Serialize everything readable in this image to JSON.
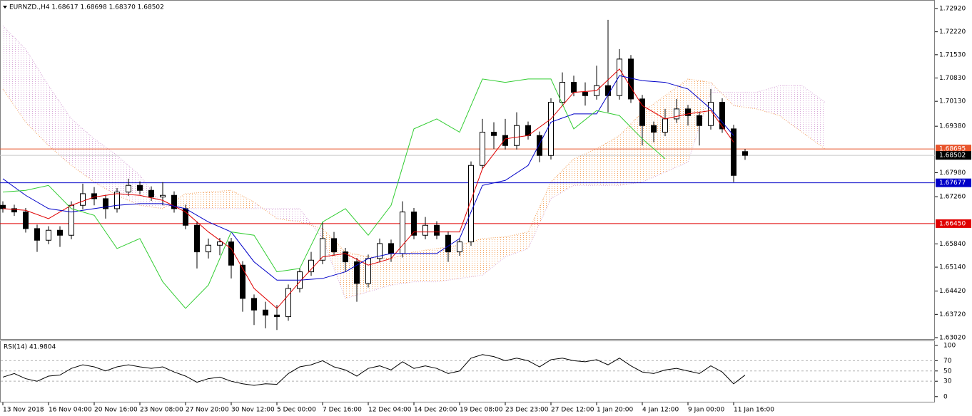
{
  "chart_data": [
    {
      "type": "candlestick",
      "title": "EURNZD.,H4  1.68617 1.68698 1.68370 1.68502",
      "x_labels": [
        "13 Nov 2018",
        "16 Nov 04:00",
        "20 Nov 16:00",
        "23 Nov 08:00",
        "27 Nov 20:00",
        "30 Nov 12:00",
        "5 Dec 00:00",
        "7 Dec 16:00",
        "12 Dec 04:00",
        "14 Dec 20:00",
        "19 Dec 08:00",
        "23 Dec 23:00",
        "27 Dec 12:00",
        "1 Jan 20:00",
        "4 Jan 12:00",
        "9 Jan 00:00",
        "11 Jan 16:00"
      ],
      "open": [
        1.67,
        1.669,
        1.668,
        1.663,
        1.6595,
        1.6625,
        1.661,
        1.67,
        1.6735,
        1.672,
        1.669,
        1.674,
        1.676,
        1.6745,
        1.6725,
        1.673,
        1.669,
        1.664,
        1.656,
        1.658,
        1.659,
        1.652,
        1.642,
        1.6385,
        1.637,
        1.6365,
        1.645,
        1.65,
        1.6535,
        1.66,
        1.656,
        1.653,
        1.6465,
        1.654,
        1.6585,
        1.6555,
        1.668,
        1.661,
        1.664,
        1.661,
        1.656,
        1.659,
        1.682,
        1.692,
        1.691,
        1.688,
        1.694,
        1.691,
        1.685,
        1.701,
        1.707,
        1.704,
        1.703,
        1.706,
        1.703,
        1.714,
        1.702,
        1.694,
        1.692,
        1.696,
        1.699,
        1.697,
        1.694,
        1.701,
        1.693,
        1.68617
      ],
      "high": [
        1.6712,
        1.6702,
        1.6692,
        1.6642,
        1.6637,
        1.6637,
        1.6712,
        1.6765,
        1.6755,
        1.6732,
        1.6752,
        1.678,
        1.6772,
        1.6757,
        1.677,
        1.6742,
        1.6702,
        1.6652,
        1.66,
        1.6602,
        1.6602,
        1.6532,
        1.6432,
        1.641,
        1.64,
        1.6462,
        1.6512,
        1.656,
        1.665,
        1.662,
        1.6572,
        1.6542,
        1.6552,
        1.66,
        1.6597,
        1.6712,
        1.6692,
        1.6665,
        1.6652,
        1.6622,
        1.6602,
        1.6832,
        1.696,
        1.695,
        1.696,
        1.698,
        1.6952,
        1.6922,
        1.7022,
        1.71,
        1.709,
        1.707,
        1.712,
        1.7258,
        1.717,
        1.7152,
        1.7032,
        1.6952,
        1.699,
        1.702,
        1.7002,
        1.6982,
        1.705,
        1.7022,
        1.6942,
        1.68698
      ],
      "low": [
        1.6678,
        1.6668,
        1.6618,
        1.656,
        1.6583,
        1.6575,
        1.6598,
        1.6688,
        1.67,
        1.666,
        1.6678,
        1.6728,
        1.6733,
        1.6713,
        1.67,
        1.6678,
        1.6628,
        1.651,
        1.654,
        1.655,
        1.648,
        1.638,
        1.634,
        1.633,
        1.6325,
        1.6353,
        1.6438,
        1.6488,
        1.6523,
        1.6548,
        1.65,
        1.641,
        1.6453,
        1.6528,
        1.653,
        1.6543,
        1.6598,
        1.6598,
        1.6598,
        1.653,
        1.6548,
        1.6578,
        1.6808,
        1.687,
        1.6868,
        1.6868,
        1.6898,
        1.683,
        1.6838,
        1.6998,
        1.7028,
        1.7,
        1.7018,
        1.698,
        1.7018,
        1.7008,
        1.688,
        1.689,
        1.6908,
        1.6948,
        1.694,
        1.688,
        1.6928,
        1.6918,
        1.677,
        1.6837
      ],
      "close": [
        1.669,
        1.668,
        1.663,
        1.6595,
        1.6625,
        1.661,
        1.67,
        1.6735,
        1.672,
        1.669,
        1.674,
        1.676,
        1.6745,
        1.6725,
        1.673,
        1.669,
        1.664,
        1.656,
        1.658,
        1.659,
        1.652,
        1.642,
        1.6385,
        1.637,
        1.6365,
        1.645,
        1.65,
        1.6535,
        1.66,
        1.656,
        1.653,
        1.6465,
        1.654,
        1.6585,
        1.6555,
        1.668,
        1.661,
        1.664,
        1.661,
        1.656,
        1.659,
        1.682,
        1.692,
        1.691,
        1.688,
        1.694,
        1.691,
        1.685,
        1.701,
        1.707,
        1.704,
        1.703,
        1.706,
        1.703,
        1.714,
        1.702,
        1.694,
        1.692,
        1.696,
        1.699,
        1.697,
        1.694,
        1.701,
        1.693,
        1.679,
        1.68502
      ],
      "ylim": [
        1.62977,
        1.73155
      ],
      "yticks": [
        {
          "value": 1.7292,
          "label": "1.72920"
        },
        {
          "value": 1.7222,
          "label": "1.72220"
        },
        {
          "value": 1.7153,
          "label": "1.71530"
        },
        {
          "value": 1.7083,
          "label": "1.70830"
        },
        {
          "value": 1.7013,
          "label": "1.70130"
        },
        {
          "value": 1.6938,
          "label": "1.69380"
        },
        {
          "value": 1.6798,
          "label": "1.67980"
        },
        {
          "value": 1.6726,
          "label": "1.67260"
        },
        {
          "value": 1.6584,
          "label": "1.65840"
        },
        {
          "value": 1.6514,
          "label": "1.65140"
        },
        {
          "value": 1.6442,
          "label": "1.64420"
        },
        {
          "value": 1.6372,
          "label": "1.63720"
        },
        {
          "value": 1.6302,
          "label": "1.63020"
        }
      ],
      "levels": [
        {
          "value": 1.68695,
          "color": "#e8542b"
        },
        {
          "value": 1.68502,
          "color": "#000000",
          "line_color": "#c8c8c8"
        },
        {
          "value": 1.67677,
          "color": "#0000c8"
        },
        {
          "value": 1.6645,
          "label": "1.66450",
          "color": "#e00000"
        }
      ],
      "lines": [
        {
          "color": "#e00000",
          "x": [
            0,
            2,
            4,
            6,
            8,
            10,
            12,
            14,
            16,
            18,
            20,
            22,
            24,
            26,
            28,
            30,
            32,
            34,
            36,
            38,
            40,
            42,
            44,
            46,
            48,
            50,
            52,
            54,
            56,
            58,
            60,
            62,
            64
          ],
          "values": [
            1.669,
            1.6685,
            1.666,
            1.67,
            1.6725,
            1.6735,
            1.673,
            1.6715,
            1.668,
            1.662,
            1.657,
            1.645,
            1.639,
            1.647,
            1.6545,
            1.6555,
            1.652,
            1.654,
            1.662,
            1.662,
            1.662,
            1.681,
            1.69,
            1.691,
            1.696,
            1.704,
            1.7045,
            1.711,
            1.7,
            1.696,
            1.6975,
            1.6985,
            1.689
          ]
        },
        {
          "color": "#0000c8",
          "x": [
            0,
            2,
            4,
            6,
            8,
            10,
            12,
            14,
            16,
            18,
            20,
            22,
            24,
            26,
            28,
            30,
            32,
            34,
            36,
            38,
            40,
            42,
            44,
            46,
            48,
            50,
            52,
            54,
            56,
            58,
            60,
            62,
            64
          ],
          "values": [
            1.678,
            1.673,
            1.669,
            1.668,
            1.669,
            1.67,
            1.6705,
            1.6705,
            1.669,
            1.665,
            1.662,
            1.653,
            1.6475,
            1.6475,
            1.648,
            1.65,
            1.654,
            1.6555,
            1.6555,
            1.6555,
            1.66,
            1.676,
            1.6775,
            1.682,
            1.695,
            1.6975,
            1.6975,
            1.709,
            1.7075,
            1.707,
            1.705,
            1.699,
            1.691
          ]
        },
        {
          "color": "#32cd32",
          "x": [
            0,
            2,
            4,
            6,
            8,
            10,
            12,
            14,
            16,
            18,
            20,
            22,
            24,
            26,
            28,
            30,
            32,
            34,
            36,
            38,
            40,
            42,
            44,
            46,
            48,
            50,
            52,
            54,
            56,
            58
          ],
          "values": [
            1.674,
            1.6745,
            1.676,
            1.669,
            1.667,
            1.657,
            1.66,
            1.647,
            1.639,
            1.646,
            1.662,
            1.661,
            1.65,
            1.651,
            1.665,
            1.669,
            1.661,
            1.67,
            1.693,
            1.696,
            1.692,
            1.708,
            1.707,
            1.708,
            1.708,
            1.693,
            1.6985,
            1.697,
            1.69,
            1.684
          ]
        }
      ],
      "cloud": {
        "colors": [
          "#f4a460",
          "#d8a8d8"
        ],
        "x": [
          0,
          2,
          4,
          6,
          8,
          10,
          12,
          14,
          16,
          18,
          20,
          22,
          24,
          26,
          28,
          30,
          32,
          34,
          36,
          38,
          40,
          42,
          44,
          46,
          48,
          50,
          52,
          54,
          56,
          58,
          60,
          62,
          64,
          66,
          68,
          70,
          72
        ],
        "span_a": [
          1.705,
          1.695,
          1.688,
          1.682,
          1.677,
          1.673,
          1.67,
          1.669,
          1.6735,
          1.674,
          1.6745,
          1.671,
          1.666,
          1.665,
          1.663,
          1.656,
          1.6545,
          1.654,
          1.656,
          1.657,
          1.658,
          1.66,
          1.6605,
          1.662,
          1.677,
          1.684,
          1.687,
          1.691,
          1.698,
          1.703,
          1.708,
          1.707,
          1.7,
          1.699,
          1.697,
          1.692,
          1.687
        ],
        "span_b": [
          1.724,
          1.717,
          1.706,
          1.696,
          1.69,
          1.685,
          1.679,
          1.67,
          1.669,
          1.669,
          1.669,
          1.669,
          1.669,
          1.669,
          1.66,
          1.642,
          1.644,
          1.646,
          1.647,
          1.647,
          1.648,
          1.649,
          1.6545,
          1.657,
          1.672,
          1.676,
          1.676,
          1.676,
          1.677,
          1.68,
          1.683,
          1.704,
          1.704,
          1.704,
          1.706,
          1.706,
          1.701
        ]
      }
    },
    {
      "type": "line",
      "title": "RSI(14) 41.9804",
      "color": "#000000",
      "values": [
        38,
        45,
        35,
        30,
        40,
        42,
        55,
        62,
        58,
        50,
        58,
        62,
        58,
        55,
        58,
        48,
        40,
        28,
        35,
        38,
        30,
        25,
        22,
        25,
        24,
        45,
        58,
        62,
        70,
        58,
        52,
        40,
        55,
        60,
        52,
        68,
        55,
        60,
        55,
        45,
        50,
        75,
        82,
        78,
        70,
        75,
        70,
        58,
        72,
        75,
        70,
        68,
        72,
        62,
        75,
        60,
        48,
        45,
        52,
        55,
        50,
        45,
        60,
        48,
        25,
        41.9804
      ],
      "ylim": [
        -10,
        108
      ],
      "yticks": [
        100,
        70,
        50,
        30,
        0
      ],
      "grid_levels": [
        70,
        50,
        30
      ]
    }
  ]
}
